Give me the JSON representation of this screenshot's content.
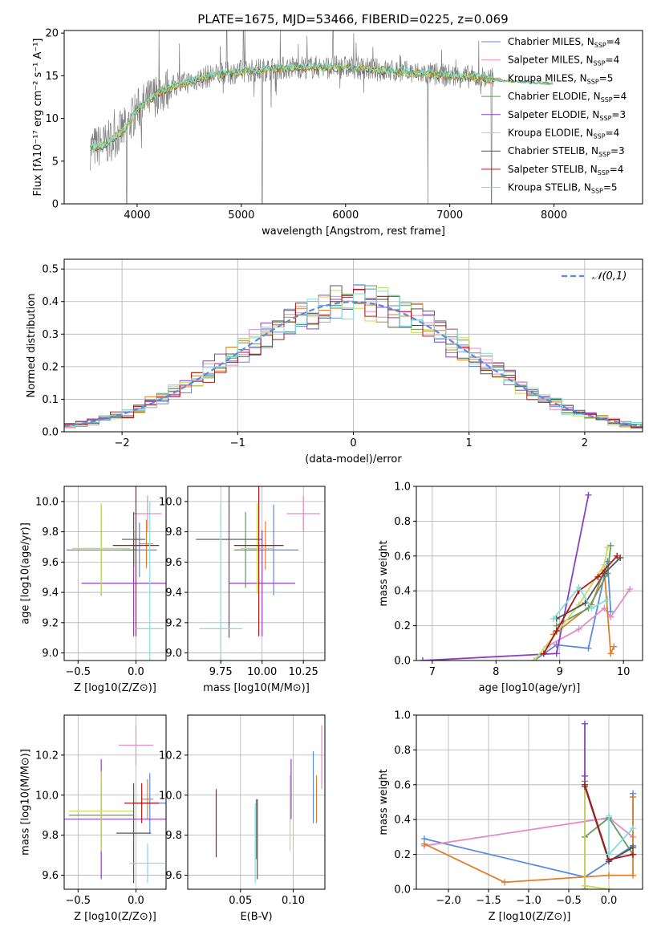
{
  "colors": {
    "c0": "#5b8bdc",
    "c1": "#e58ac6",
    "c2": "#e07f2a",
    "c3": "#5e9e5e",
    "c4": "#8d3fc0",
    "c5": "#c6dd58",
    "c6": "#555555",
    "c7": "#b01717",
    "c8": "#80dede"
  },
  "legend": [
    {
      "label": "Chabrier MILES, N",
      "sub": "SSP",
      "tail": "=4",
      "color": "c0"
    },
    {
      "label": "Salpeter MILES, N",
      "sub": "SSP",
      "tail": "=4",
      "color": "c1"
    },
    {
      "label": "Kroupa MILES, N",
      "sub": "SSP",
      "tail": "=5",
      "color": "c2"
    },
    {
      "label": "Chabrier ELODIE, N",
      "sub": "SSP",
      "tail": "=4",
      "color": "c3"
    },
    {
      "label": "Salpeter ELODIE, N",
      "sub": "SSP",
      "tail": "=3",
      "color": "c4"
    },
    {
      "label": "Kroupa ELODIE, N",
      "sub": "SSP",
      "tail": "=4",
      "color": "c5"
    },
    {
      "label": "Chabrier STELIB, N",
      "sub": "SSP",
      "tail": "=3",
      "color": "c6"
    },
    {
      "label": "Salpeter STELIB, N",
      "sub": "SSP",
      "tail": "=4",
      "color": "c7"
    },
    {
      "label": "Kroupa STELIB, N",
      "sub": "SSP",
      "tail": "=5",
      "color": "c8"
    }
  ],
  "chart_data": [
    {
      "id": "spectrum",
      "type": "line",
      "title": "PLATE=1675, MJD=53466, FIBERID=0225, z=0.069",
      "xlabel": "wavelength [Angstrom, rest frame]",
      "ylabel": "Flux [fλ10⁻¹⁷ erg cm⁻² s⁻¹ A⁻¹]",
      "xlim": [
        3300,
        8850
      ],
      "ylim": [
        0,
        20.3
      ],
      "xticks": [
        4000,
        5000,
        6000,
        7000,
        8000
      ],
      "yticks": [
        0,
        5,
        10,
        15,
        20
      ],
      "legend_position": "right",
      "continuum": [
        [
          3550,
          6.5
        ],
        [
          3700,
          7.0
        ],
        [
          3900,
          9.0
        ],
        [
          4000,
          11.0
        ],
        [
          4100,
          12.0
        ],
        [
          4200,
          13.0
        ],
        [
          4400,
          14.0
        ],
        [
          4700,
          15.0
        ],
        [
          5000,
          15.5
        ],
        [
          5500,
          16.0
        ],
        [
          6000,
          16.0
        ],
        [
          6500,
          15.5
        ],
        [
          7000,
          15.0
        ],
        [
          7300,
          14.8
        ],
        [
          7420,
          14.5
        ]
      ],
      "model_end": 8000,
      "data_end": 7420
    },
    {
      "id": "residuals",
      "type": "line",
      "xlabel": "(data-model)/error",
      "ylabel": "Normed distribution",
      "xlim": [
        -2.5,
        2.5
      ],
      "ylim": [
        0,
        0.53
      ],
      "xticks": [
        -2,
        -1,
        0,
        1,
        2
      ],
      "yticks": [
        0.0,
        0.1,
        0.2,
        0.3,
        0.4,
        0.5
      ],
      "grid": true,
      "series": [
        {
          "name": "𝒩(0,1)",
          "color": "#5b8bdc",
          "style": "dashed",
          "mu": 0,
          "sigma": 1
        }
      ],
      "legend_position": "top-right"
    },
    {
      "id": "age-vs-Z",
      "type": "scatter",
      "xlabel": "Z [log10(Z/Z⊙)]",
      "ylabel": "age  [log10(age/yr)]",
      "xlim": [
        -0.62,
        0.26
      ],
      "ylim": [
        8.95,
        10.1
      ],
      "xticks": [
        -0.5,
        0.0
      ],
      "yticks": [
        9.0,
        9.2,
        9.4,
        9.6,
        9.8,
        10.0
      ],
      "grid": true,
      "points": [
        {
          "x": 0.03,
          "y": 9.68,
          "xerr": 0.15,
          "yerr": 0.18,
          "color": "c0"
        },
        {
          "x": 0.1,
          "y": 9.92,
          "xerr": 0.12,
          "yerr": 0.12,
          "color": "c1"
        },
        {
          "x": 0.09,
          "y": 9.72,
          "xerr": 0.06,
          "yerr": 0.16,
          "color": "c2"
        },
        {
          "x": -0.3,
          "y": 9.68,
          "xerr": 0.3,
          "yerr": 0.3,
          "color": "c3"
        },
        {
          "x": -0.02,
          "y": 9.46,
          "xerr": 0.45,
          "yerr": 0.35,
          "color": "c4"
        },
        {
          "x": -0.3,
          "y": 9.69,
          "xerr": 0.25,
          "yerr": 0.3,
          "color": "c5"
        },
        {
          "x": -0.02,
          "y": 9.75,
          "xerr": 0.1,
          "yerr": 0.18,
          "color": "c6"
        },
        {
          "x": 0.0,
          "y": 9.71,
          "xerr": 0.2,
          "yerr": 0.6,
          "color": "c7"
        },
        {
          "x": 0.12,
          "y": 9.16,
          "xerr": 0.12,
          "yerr": 0.84,
          "color": "c8"
        }
      ]
    },
    {
      "id": "age-vs-mass",
      "type": "scatter",
      "xlabel": "mass [log10(M/M⊙)]",
      "ylabel": "",
      "xlim": [
        9.55,
        10.38
      ],
      "ylim": [
        8.95,
        10.1
      ],
      "xticks": [
        9.75,
        10.0,
        10.25
      ],
      "yticks": [
        9.0,
        9.2,
        9.4,
        9.6,
        9.8,
        10.0
      ],
      "grid": true,
      "points": [
        {
          "x": 10.07,
          "y": 9.68,
          "xerr": 0.15,
          "yerr": 0.3,
          "color": "c0"
        },
        {
          "x": 10.25,
          "y": 9.92,
          "xerr": 0.1,
          "yerr": 0.12,
          "color": "c1"
        },
        {
          "x": 10.02,
          "y": 9.71,
          "xerr": 0.05,
          "yerr": 0.16,
          "color": "c2"
        },
        {
          "x": 9.9,
          "y": 9.68,
          "xerr": 0.07,
          "yerr": 0.25,
          "color": "c3"
        },
        {
          "x": 10.0,
          "y": 9.46,
          "xerr": 0.2,
          "yerr": 0.35,
          "color": "c4"
        },
        {
          "x": 9.97,
          "y": 9.69,
          "xerr": 0.1,
          "yerr": 0.3,
          "color": "c5"
        },
        {
          "x": 9.8,
          "y": 9.75,
          "xerr": 0.2,
          "yerr": 0.65,
          "color": "c6"
        },
        {
          "x": 9.98,
          "y": 9.71,
          "xerr": 0.15,
          "yerr": 0.6,
          "color": "c7"
        },
        {
          "x": 9.75,
          "y": 9.16,
          "xerr": 0.13,
          "yerr": 0.84,
          "color": "c8"
        }
      ]
    },
    {
      "id": "weight-vs-age",
      "type": "line",
      "xlabel": "age  [log10(age/yr)]",
      "ylabel": "mass weight",
      "xlim": [
        6.75,
        10.3
      ],
      "ylim": [
        0,
        1.0
      ],
      "xticks": [
        7,
        8,
        9,
        10
      ],
      "yticks": [
        0.0,
        0.2,
        0.4,
        0.6,
        0.8,
        1.0
      ],
      "grid": true,
      "series": [
        {
          "color": "c0",
          "x": [
            8.6,
            8.95,
            9.45,
            9.75,
            9.8
          ],
          "y": [
            0.0,
            0.09,
            0.07,
            0.57,
            0.28
          ]
        },
        {
          "color": "c1",
          "x": [
            8.8,
            9.3,
            9.7,
            9.8,
            10.1
          ],
          "y": [
            0.08,
            0.18,
            0.3,
            0.25,
            0.41
          ]
        },
        {
          "color": "c2",
          "x": [
            8.9,
            9.5,
            9.7,
            9.8,
            9.85
          ],
          "y": [
            0.15,
            0.32,
            0.52,
            0.04,
            0.08
          ]
        },
        {
          "color": "c3",
          "x": [
            8.95,
            9.45,
            9.75,
            9.8
          ],
          "y": [
            0.2,
            0.3,
            0.5,
            0.66
          ]
        },
        {
          "color": "c4",
          "x": [
            6.85,
            8.95,
            9.45
          ],
          "y": [
            0.0,
            0.04,
            0.95
          ]
        },
        {
          "color": "c5",
          "x": [
            8.6,
            9.3,
            9.7,
            9.75
          ],
          "y": [
            0.0,
            0.32,
            0.55,
            0.65
          ]
        },
        {
          "color": "c6",
          "x": [
            8.95,
            9.4,
            9.7,
            9.95
          ],
          "y": [
            0.24,
            0.33,
            0.5,
            0.59
          ]
        },
        {
          "color": "c7",
          "x": [
            8.75,
            8.95,
            9.3,
            9.6,
            9.9
          ],
          "y": [
            0.04,
            0.17,
            0.4,
            0.48,
            0.6
          ]
        },
        {
          "color": "c8",
          "x": [
            8.9,
            9.3,
            9.5,
            9.75
          ],
          "y": [
            0.24,
            0.42,
            0.3,
            0.35
          ]
        }
      ]
    },
    {
      "id": "mass-vs-Z",
      "type": "scatter",
      "xlabel": "Z [log10(Z/Z⊙)]",
      "ylabel": "mass [log10(M/M⊙)]",
      "xlim": [
        -0.62,
        0.26
      ],
      "ylim": [
        9.53,
        10.4
      ],
      "xticks": [
        -0.5,
        0.0
      ],
      "yticks": [
        9.6,
        9.8,
        10.0,
        10.2
      ],
      "grid": true,
      "points": [
        {
          "x": 0.12,
          "y": 9.96,
          "xerr": 0.15,
          "yerr": 0.15,
          "color": "c0"
        },
        {
          "x": 0.0,
          "y": 10.25,
          "xerr": 0.15,
          "yerr": 0.1,
          "color": "c1"
        },
        {
          "x": 0.1,
          "y": 9.98,
          "xerr": 0.05,
          "yerr": 0.1,
          "color": "c2"
        },
        {
          "x": -0.3,
          "y": 9.9,
          "xerr": 0.28,
          "yerr": 0.15,
          "color": "c3"
        },
        {
          "x": -0.3,
          "y": 9.88,
          "xerr": 0.6,
          "yerr": 0.3,
          "color": "c4"
        },
        {
          "x": -0.3,
          "y": 9.92,
          "xerr": 0.28,
          "yerr": 0.2,
          "color": "c5"
        },
        {
          "x": -0.02,
          "y": 9.81,
          "xerr": 0.15,
          "yerr": 0.25,
          "color": "c6"
        },
        {
          "x": 0.05,
          "y": 9.96,
          "xerr": 0.15,
          "yerr": 0.1,
          "color": "c7"
        },
        {
          "x": 0.1,
          "y": 9.66,
          "xerr": 0.15,
          "yerr": 0.1,
          "color": "c8"
        }
      ]
    },
    {
      "id": "mass-vs-EBV",
      "type": "scatter",
      "xlabel": "E(B-V)",
      "ylabel": "",
      "xlim": [
        0.0,
        0.13
      ],
      "ylim": [
        9.53,
        10.4
      ],
      "xticks": [
        0.05,
        0.1
      ],
      "yticks": [
        9.6,
        9.8,
        10.0,
        10.2
      ],
      "grid": true,
      "points": [
        {
          "x": 0.119,
          "y": 10.04,
          "xerr": 0,
          "yerr": 0.18,
          "color": "c0"
        },
        {
          "x": 0.127,
          "y": 10.19,
          "xerr": 0,
          "yerr": 0.16,
          "color": "c1"
        },
        {
          "x": 0.122,
          "y": 9.98,
          "xerr": 0,
          "yerr": 0.12,
          "color": "c2"
        },
        {
          "x": 0.065,
          "y": 9.83,
          "xerr": 0,
          "yerr": 0.15,
          "color": "c3"
        },
        {
          "x": 0.098,
          "y": 10.03,
          "xerr": 0,
          "yerr": 0.15,
          "color": "c4"
        },
        {
          "x": 0.097,
          "y": 9.91,
          "xerr": 0,
          "yerr": 0.19,
          "color": "c5"
        },
        {
          "x": 0.066,
          "y": 9.78,
          "xerr": 0,
          "yerr": 0.2,
          "color": "c6"
        },
        {
          "x": 0.027,
          "y": 9.86,
          "xerr": 0,
          "yerr": 0.17,
          "color": "c7"
        },
        {
          "x": 0.064,
          "y": 9.76,
          "xerr": 0,
          "yerr": 0.2,
          "color": "c8"
        }
      ]
    },
    {
      "id": "weight-vs-Z",
      "type": "line",
      "xlabel": "Z [log10(Z/Z⊙)]",
      "ylabel": "mass weight",
      "xlim": [
        -2.4,
        0.42
      ],
      "ylim": [
        0,
        1.0
      ],
      "xticks": [
        -2.0,
        -1.5,
        -1.0,
        -0.5,
        0.0
      ],
      "yticks": [
        0.0,
        0.2,
        0.4,
        0.6,
        0.8,
        1.0
      ],
      "grid": true,
      "series": [
        {
          "color": "c0",
          "x": [
            -2.3,
            -0.3,
            0.3,
            0.3
          ],
          "y": [
            0.29,
            0.07,
            0.25,
            0.55
          ]
        },
        {
          "color": "c1",
          "x": [
            -2.3,
            0.0,
            0.3
          ],
          "y": [
            0.25,
            0.41,
            0.3
          ]
        },
        {
          "color": "c2",
          "x": [
            -2.3,
            -1.3,
            0.0,
            0.3,
            0.3
          ],
          "y": [
            0.26,
            0.04,
            0.08,
            0.08,
            0.53
          ]
        },
        {
          "color": "c3",
          "x": [
            -0.3,
            -0.3,
            0.0,
            0.3
          ],
          "y": [
            0.62,
            0.3,
            0.41,
            0.2
          ]
        },
        {
          "color": "c4",
          "x": [
            -0.3,
            -0.3,
            -0.3
          ],
          "y": [
            0.95,
            0.65,
            0.0
          ]
        },
        {
          "color": "c5",
          "x": [
            -0.3,
            -0.3,
            0.0
          ],
          "y": [
            0.6,
            0.02,
            0.0
          ]
        },
        {
          "color": "c6",
          "x": [
            -0.3,
            0.0,
            0.3
          ],
          "y": [
            0.59,
            0.16,
            0.24
          ]
        },
        {
          "color": "c7",
          "x": [
            -0.3,
            0.0,
            0.3
          ],
          "y": [
            0.6,
            0.17,
            0.2
          ]
        },
        {
          "color": "c8",
          "x": [
            0.0,
            0.0,
            0.3
          ],
          "y": [
            0.42,
            0.2,
            0.35
          ]
        }
      ]
    }
  ]
}
